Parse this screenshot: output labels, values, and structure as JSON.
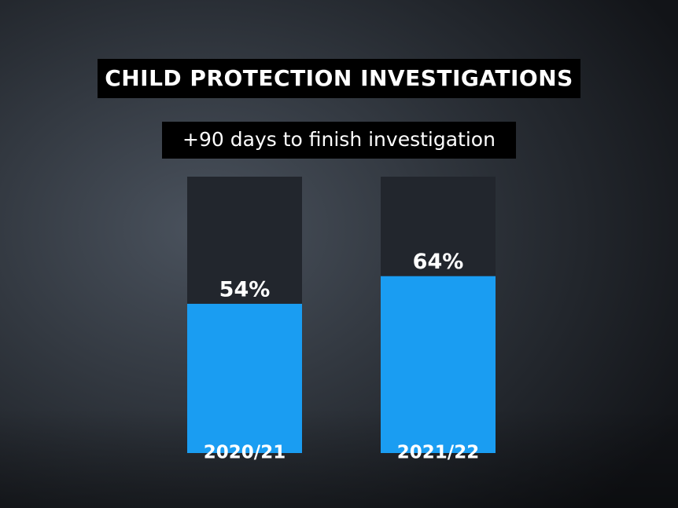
{
  "chart_data": {
    "type": "bar",
    "title": "CHILD PROTECTION INVESTIGATIONS",
    "subtitle": "+90 days to finish investigation",
    "categories": [
      "2020/21",
      "2021/22"
    ],
    "values": [
      54,
      64
    ],
    "value_labels": [
      "54%",
      "64%"
    ],
    "color": "#1a9df2",
    "track_color": "#22262d",
    "ylim": [
      0,
      100
    ]
  }
}
